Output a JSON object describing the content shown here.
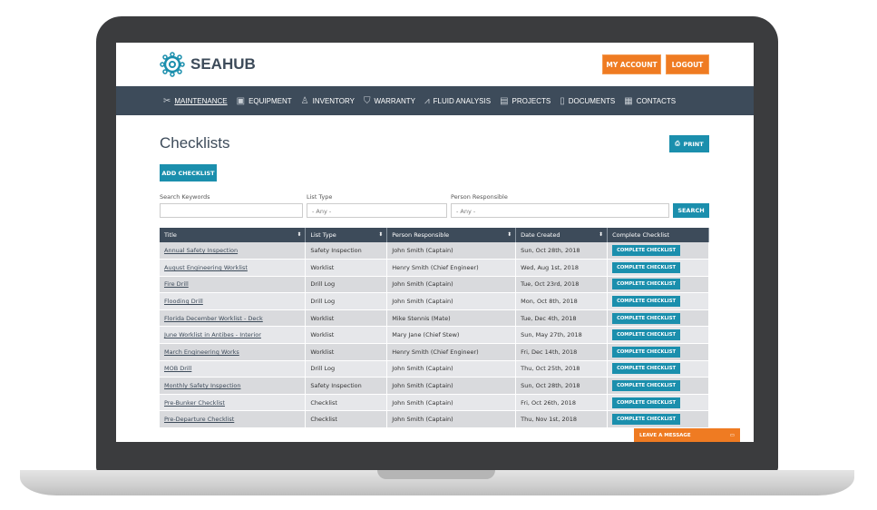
{
  "header": {
    "brand": "SEAHUB",
    "my_account": "MY ACCOUNT",
    "logout": "LOGOUT"
  },
  "nav": [
    {
      "label": "MAINTENANCE",
      "icon": "wrench-screwdriver-icon",
      "glyph": "✂",
      "active": true
    },
    {
      "label": "EQUIPMENT",
      "icon": "equipment-icon",
      "glyph": "▣"
    },
    {
      "label": "INVENTORY",
      "icon": "hand-truck-icon",
      "glyph": "♙"
    },
    {
      "label": "WARRANTY",
      "icon": "shield-icon",
      "glyph": "⛉"
    },
    {
      "label": "FLUID ANALYSIS",
      "icon": "chart-icon",
      "glyph": "⩘"
    },
    {
      "label": "PROJECTS",
      "icon": "projects-icon",
      "glyph": "▤"
    },
    {
      "label": "DOCUMENTS",
      "icon": "document-icon",
      "glyph": "▯"
    },
    {
      "label": "CONTACTS",
      "icon": "contacts-icon",
      "glyph": "▦"
    }
  ],
  "page": {
    "title": "Checklists",
    "print": "PRINT",
    "add": "ADD CHECKLIST"
  },
  "filters": {
    "keywords_label": "Search Keywords",
    "keywords_value": "",
    "list_type_label": "List Type",
    "list_type_value": "- Any -",
    "person_label": "Person Responsible",
    "person_value": "- Any -",
    "search": "SEARCH"
  },
  "table": {
    "columns": [
      "Title",
      "List Type",
      "Person Responsible",
      "Date Created",
      "Complete Checklist"
    ],
    "button": "COMPLETE CHECKLIST",
    "rows": [
      [
        "Annual Safety Inspection",
        "Safety Inspection",
        "John Smith (Captain)",
        "Sun, Oct 28th, 2018"
      ],
      [
        "August Engineering Worklist",
        "Worklist",
        "Henry Smith (Chief Engineer)",
        "Wed, Aug 1st, 2018"
      ],
      [
        "Fire Drill",
        "Drill Log",
        "John Smith (Captain)",
        "Tue, Oct 23rd, 2018"
      ],
      [
        "Flooding Drill",
        "Drill Log",
        "John Smith (Captain)",
        "Mon, Oct 8th, 2018"
      ],
      [
        "Florida December Worklist - Deck",
        "Worklist",
        "Mike Stennis (Mate)",
        "Tue, Dec 4th, 2018"
      ],
      [
        "June Worklist in Antibes - Interior",
        "Worklist",
        "Mary Jane (Chief Stew)",
        "Sun, May 27th, 2018"
      ],
      [
        "March Engineering Works",
        "Worklist",
        "Henry Smith (Chief Engineer)",
        "Fri, Dec 14th, 2018"
      ],
      [
        "MOB Drill",
        "Drill Log",
        "John Smith (Captain)",
        "Thu, Oct 25th, 2018"
      ],
      [
        "Monthly Safety Inspection",
        "Safety Inspection",
        "John Smith (Captain)",
        "Sun, Oct 28th, 2018"
      ],
      [
        "Pre-Bunker Checklist",
        "Checklist",
        "John Smith (Captain)",
        "Fri, Oct 26th, 2018"
      ],
      [
        "Pre-Departure Checklist",
        "Checklist",
        "John Smith (Captain)",
        "Thu, Nov 1st, 2018"
      ]
    ]
  },
  "chat": {
    "label": "LEAVE A MESSAGE"
  },
  "colors": {
    "nav": "#3d4b5a",
    "accent": "#1b8fad",
    "orange": "#ef7b22"
  }
}
